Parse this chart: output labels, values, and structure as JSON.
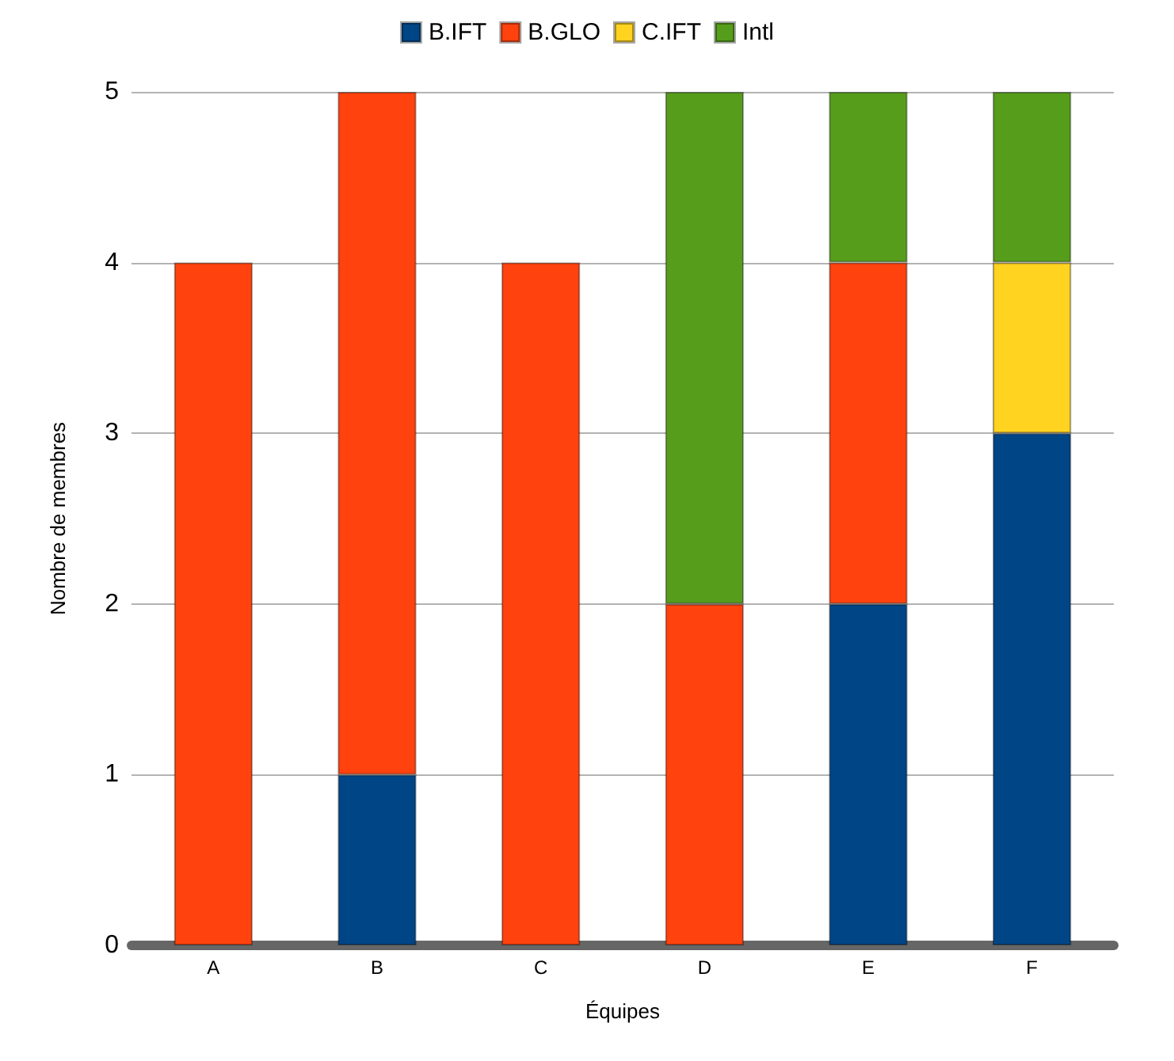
{
  "chart_data": {
    "type": "bar",
    "stacked": true,
    "xlabel": "Équipes",
    "ylabel": "Nombre de membres",
    "categories": [
      "A",
      "B",
      "C",
      "D",
      "E",
      "F"
    ],
    "series": [
      {
        "name": "B.IFT",
        "color": "#004586",
        "values": [
          0,
          1,
          0,
          0,
          2,
          3
        ]
      },
      {
        "name": "B.GLO",
        "color": "#ff420e",
        "values": [
          4,
          4,
          4,
          2,
          2,
          0
        ]
      },
      {
        "name": "C.IFT",
        "color": "#ffd320",
        "values": [
          0,
          0,
          0,
          0,
          0,
          1
        ]
      },
      {
        "name": "Intl",
        "color": "#579d1c",
        "values": [
          0,
          0,
          0,
          3,
          1,
          1
        ]
      }
    ],
    "ylim": [
      0,
      5
    ],
    "yticks": [
      0,
      1,
      2,
      3,
      4,
      5
    ],
    "grid": "y",
    "legend": "top"
  }
}
